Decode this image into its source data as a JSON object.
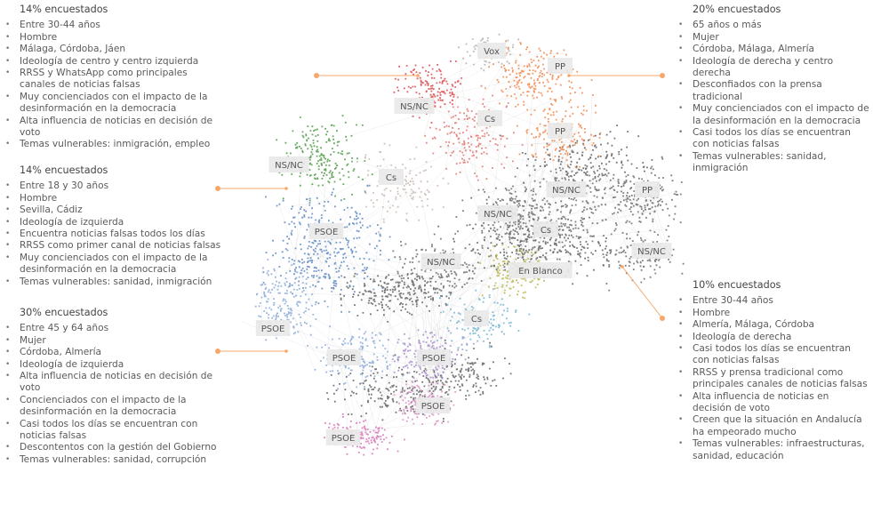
{
  "groups": {
    "top_left": {
      "title": "14% encuestados",
      "items": [
        "Entre 30-44 años",
        "Hombre",
        "Málaga, Córdoba, Jáen",
        "Ideología de centro y centro izquierda",
        "RRSS y WhatsApp como principales canales de noticias falsas",
        "Muy concienciados con el impacto de la desinformación en la democracia",
        "Alta influencia de noticias en decisión de voto",
        "Temas vulnerables: inmigración, empleo"
      ]
    },
    "mid_left": {
      "title": "14% encuestados",
      "items": [
        "Entre 18 y 30 años",
        "Hombre",
        "Sevilla, Cádiz",
        "Ideología de izquierda",
        "Encuentra noticias falsas todos los días",
        "RRSS como primer canal de noticias falsas",
        "Muy concienciados con el impacto de la desinformación en la democracia",
        "Temas vulnerables: sanidad, inmigración"
      ]
    },
    "bottom_left": {
      "title": "30% encuestados",
      "items": [
        "Entre 45 y 64 años",
        "Mujer",
        "Córdoba, Almería",
        "Ideología de izquierda",
        "Alta influencia de noticias en decisión de voto",
        "Concienciados con el impacto de la desinformación en la democracia",
        "Casi todos los días se encuentran con noticias falsas",
        "Descontentos con la gestión del Gobierno",
        "Temas vulnerables: sanidad, corrupción"
      ]
    },
    "top_right": {
      "title": "20% encuestados",
      "items": [
        "65 años o más",
        "Mujer",
        "Córdoba, Málaga, Almería",
        "Ideología de derecha y centro derecha",
        "Desconfiados con la prensa tradicional",
        "Muy concienciados con el impacto de la desinformación en la democracia",
        "Casi todos los días se encuentran con noticias falsas",
        "Temas vulnerables: sanidad, inmigración"
      ]
    },
    "bottom_right": {
      "title": "10% encuestados",
      "items": [
        "Entre 30-44 años",
        "Hombre",
        "Almería, Málaga, Córdoba",
        "Ideología de derecha",
        "Casi todos los días se encuentran con noticias falsas",
        "RRSS y prensa tradicional como principales canales de noticias falsas",
        "Alta influencia de noticias en decisión de voto",
        "Creen que la situación en Andalucía ha empeorado mucho",
        "Temas vulnerables:  infraestructuras, sanidad, educación"
      ]
    }
  },
  "clusters": [
    {
      "label": "Vox",
      "color": "#b0b0b0"
    },
    {
      "label": "PP",
      "color": "#f0864a"
    },
    {
      "label": "NS/NC",
      "color": "#d9454a"
    },
    {
      "label": "Cs",
      "color": "#e0736b"
    },
    {
      "label": "PP",
      "color": "#f0864a"
    },
    {
      "label": "NS/NC",
      "color": "#4e9a45"
    },
    {
      "label": "Cs",
      "color": "#c9b9b0"
    },
    {
      "label": "NS/NC",
      "color": "#6a6a6a"
    },
    {
      "label": "PP",
      "color": "#6a6a6a"
    },
    {
      "label": "NS/NC",
      "color": "#6a6a6a"
    },
    {
      "label": "Cs",
      "color": "#6a6a6a"
    },
    {
      "label": "PSOE",
      "color": "#5b86c2"
    },
    {
      "label": "NS/NC",
      "color": "#6a6a6a"
    },
    {
      "label": "NS/NC",
      "color": "#6a6a6a"
    },
    {
      "label": "En Blanco",
      "color": "#b8b44a"
    },
    {
      "label": "PSOE",
      "color": "#8aa9d8"
    },
    {
      "label": "Cs",
      "color": "#6fb3cf"
    },
    {
      "label": "PSOE",
      "color": "#8aa9d8"
    },
    {
      "label": "PSOE",
      "color": "#a68cc9"
    },
    {
      "label": "PSOE",
      "color": "#d98fc6"
    },
    {
      "label": "PSOE",
      "color": "#d773b8"
    }
  ],
  "accent_color": "#f5a86b"
}
